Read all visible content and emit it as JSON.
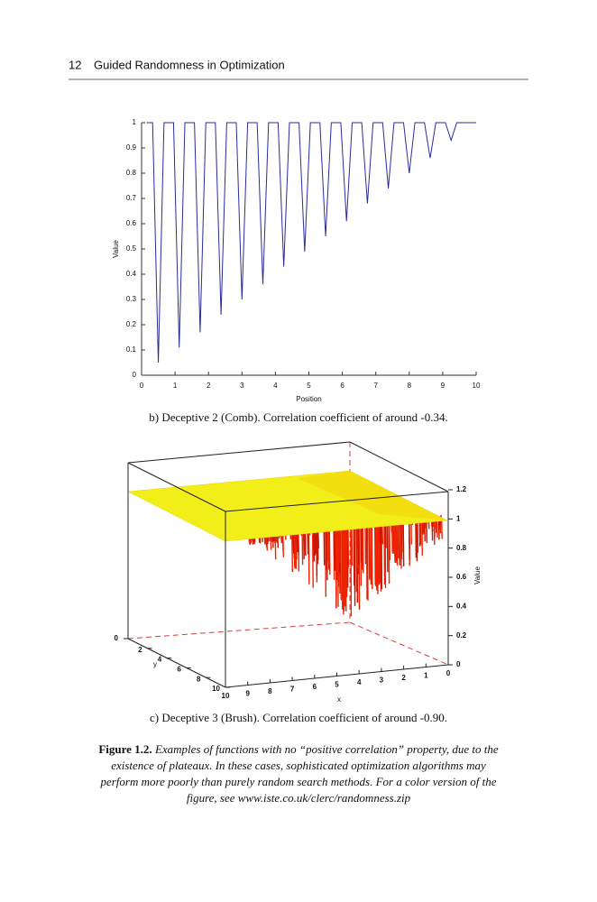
{
  "header": {
    "page_number": "12",
    "running_title": "Guided Randomness in Optimization"
  },
  "chart_data": [
    {
      "type": "line",
      "xlabel": "Position",
      "ylabel": "Value",
      "x": [
        0.15,
        0.33,
        0.5,
        0.67,
        0.955,
        1.125,
        1.295,
        1.58,
        1.75,
        1.92,
        2.205,
        2.375,
        2.545,
        2.83,
        3,
        3.17,
        3.455,
        3.625,
        3.795,
        4.08,
        4.25,
        4.42,
        4.705,
        4.875,
        5.045,
        5.33,
        5.5,
        5.67,
        5.955,
        6.125,
        6.295,
        6.58,
        6.75,
        6.92,
        7.205,
        7.375,
        7.545,
        7.83,
        8,
        8.17,
        8.455,
        8.625,
        8.795,
        9.08,
        9.25,
        9.42,
        10
      ],
      "series": [
        {
          "color": "#2b2b9e",
          "values": [
            1,
            1,
            0.05,
            1,
            1,
            0.11,
            1,
            1,
            0.17,
            1,
            1,
            0.24,
            1,
            1,
            0.3,
            1,
            1,
            0.36,
            1,
            1,
            0.43,
            1,
            1,
            0.49,
            1,
            1,
            0.55,
            1,
            1,
            0.61,
            1,
            1,
            0.68,
            1,
            1,
            0.74,
            1,
            1,
            0.8,
            1,
            1,
            0.86,
            1,
            1,
            0.93,
            1,
            1
          ]
        }
      ],
      "xlim": [
        0,
        10
      ],
      "ylim": [
        0,
        1
      ],
      "xticks": [
        0,
        1,
        2,
        3,
        4,
        5,
        6,
        7,
        8,
        9,
        10
      ],
      "yticks": [
        0,
        0.1,
        0.2,
        0.3,
        0.4,
        0.5,
        0.6,
        0.7,
        0.8,
        0.9,
        1
      ]
    },
    {
      "type": "surface",
      "xlabel": "x",
      "ylabel": "y",
      "zlabel": "Value",
      "xlim": [
        0,
        10
      ],
      "ylim": [
        0,
        10
      ],
      "zlim": [
        0,
        1.2
      ],
      "xticks": [
        0,
        1,
        2,
        3,
        4,
        5,
        6,
        7,
        8,
        9,
        10
      ],
      "yticks": [
        2,
        4,
        6,
        8,
        10
      ],
      "zticks": [
        0,
        0.2,
        0.4,
        0.6,
        0.8,
        1,
        1.2
      ],
      "zticks_left": [
        0
      ]
    }
  ],
  "captions": [
    "b) Deceptive 2 (Comb). Correlation coefficient of around -0.34.",
    "c) Deceptive 3 (Brush). Correlation coefficient of around -0.90."
  ],
  "figure_caption": {
    "label": "Figure 1.2.",
    "text": "Examples of functions with no “positive correlation” property, due to the existence of plateaux. In these cases, sophisticated optimization algorithms may perform more poorly than purely random search methods. For a color version of the figure, see www.iste.co.uk/clerc/randomness.zip"
  }
}
